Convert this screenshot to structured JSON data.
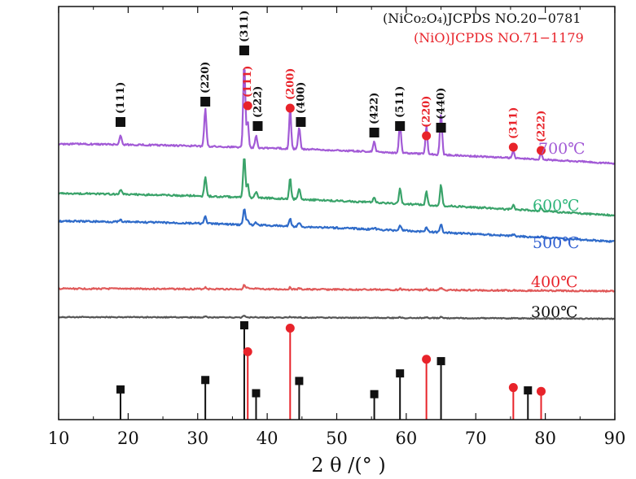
{
  "chart_data": {
    "type": "line",
    "title": "",
    "xlabel": "2 θ /(°   )",
    "ylabel": "",
    "xlim": [
      10,
      90
    ],
    "xticks": [
      "10",
      "20",
      "30",
      "40",
      "50",
      "60",
      "70",
      "80",
      "90"
    ],
    "grid": false,
    "legend": [
      {
        "name": "(NiCo₂O₄)JCPDS NO.20−0781",
        "color": "#111111",
        "marker": "square"
      },
      {
        "name": "(NiO)JCPDS NO.71−1179",
        "color": "#e8232a",
        "marker": "circle"
      }
    ],
    "series": [
      {
        "name": "300℃",
        "color": "#555555",
        "amplitude": 0.18,
        "noise": 0.6,
        "slope": 0.2
      },
      {
        "name": "400℃",
        "color": "#e05a5a",
        "amplitude": 0.3,
        "noise": 0.9,
        "slope": 0.3
      },
      {
        "name": "500℃",
        "color": "#2f6bc9",
        "amplitude": 0.6,
        "noise": 1.1,
        "slope": 2.5
      },
      {
        "name": "600℃",
        "color": "#3aa36a",
        "amplitude": 0.75,
        "noise": 1.1,
        "slope": 2.7
      },
      {
        "name": "700℃",
        "color": "#a25ad6",
        "amplitude": 1.0,
        "noise": 1.0,
        "slope": 2.4
      }
    ],
    "peaks_nico2o4": [
      {
        "hkl": "(111)",
        "two_theta": 18.9,
        "rel_intensity": 0.11
      },
      {
        "hkl": "(220)",
        "two_theta": 31.1,
        "rel_intensity": 0.45
      },
      {
        "hkl": "(311)",
        "two_theta": 36.7,
        "rel_intensity": 1.0
      },
      {
        "hkl": "(222)",
        "two_theta": 38.4,
        "rel_intensity": 0.15
      },
      {
        "hkl": "(400)",
        "two_theta": 44.6,
        "rel_intensity": 0.25
      },
      {
        "hkl": "(422)",
        "two_theta": 55.4,
        "rel_intensity": 0.12
      },
      {
        "hkl": "(511)",
        "two_theta": 59.1,
        "rel_intensity": 0.35
      },
      {
        "hkl": "(440)",
        "two_theta": 65.0,
        "rel_intensity": 0.5
      }
    ],
    "peaks_nio": [
      {
        "hkl": "(111)",
        "two_theta": 37.2,
        "rel_intensity": 0.35
      },
      {
        "hkl": "(200)",
        "two_theta": 43.3,
        "rel_intensity": 0.55
      },
      {
        "hkl": "(220)",
        "two_theta": 62.9,
        "rel_intensity": 0.38
      },
      {
        "hkl": "(311)",
        "two_theta": 75.4,
        "rel_intensity": 0.11
      },
      {
        "hkl": "(222)",
        "two_theta": 79.4,
        "rel_intensity": 0.09
      }
    ],
    "reference_sticks": {
      "nico2o4": [
        {
          "two_theta": 18.9,
          "rel_intensity": 0.32
        },
        {
          "two_theta": 31.1,
          "rel_intensity": 0.42
        },
        {
          "two_theta": 36.7,
          "rel_intensity": 1.0
        },
        {
          "two_theta": 38.4,
          "rel_intensity": 0.28
        },
        {
          "two_theta": 44.6,
          "rel_intensity": 0.41
        },
        {
          "two_theta": 55.4,
          "rel_intensity": 0.27
        },
        {
          "two_theta": 59.1,
          "rel_intensity": 0.49
        },
        {
          "two_theta": 65.0,
          "rel_intensity": 0.62
        },
        {
          "two_theta": 77.5,
          "rel_intensity": 0.31
        }
      ],
      "nio": [
        {
          "two_theta": 37.2,
          "rel_intensity": 0.72
        },
        {
          "two_theta": 43.3,
          "rel_intensity": 0.97
        },
        {
          "two_theta": 62.9,
          "rel_intensity": 0.64
        },
        {
          "two_theta": 75.4,
          "rel_intensity": 0.34
        },
        {
          "two_theta": 79.4,
          "rel_intensity": 0.3
        }
      ]
    }
  }
}
